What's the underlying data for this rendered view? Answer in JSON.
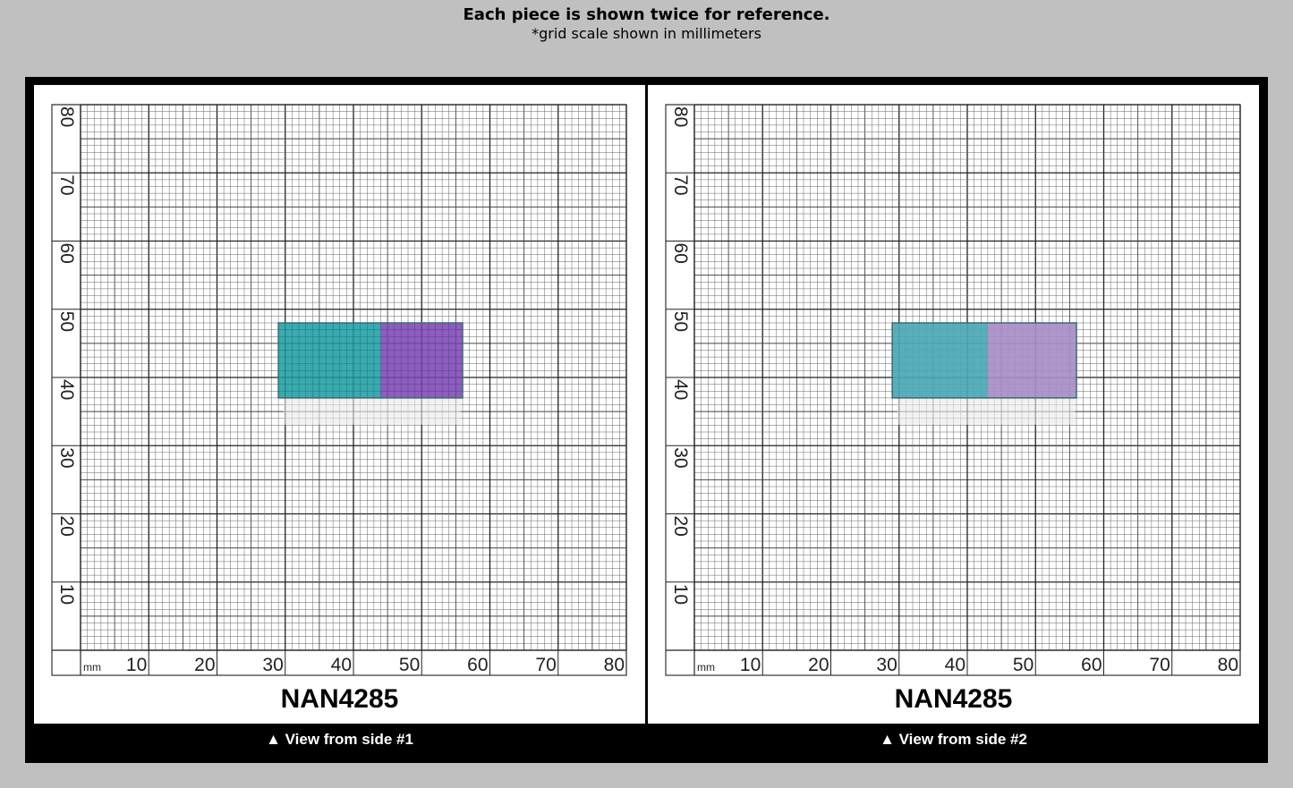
{
  "header": {
    "title": "Each piece is shown twice for reference.",
    "subtitle": "*grid scale shown in millimeters"
  },
  "panels": [
    {
      "code": "NAN4285",
      "caption": "▲ View from side #1",
      "piece": {
        "x_mm": [
          29,
          56
        ],
        "y_mm": [
          37,
          48
        ],
        "colors": [
          "#1f9ea4",
          "#7f45b6"
        ],
        "split_mm": 44
      }
    },
    {
      "code": "NAN4285",
      "caption": "▲ View from side #2",
      "piece": {
        "x_mm": [
          29,
          56
        ],
        "y_mm": [
          37,
          48
        ],
        "colors": [
          "#4ba8b3",
          "#a78cc6"
        ],
        "split_mm": 43
      }
    }
  ],
  "grid": {
    "unit": "mm",
    "x_ticks": [
      "10",
      "20",
      "30",
      "40",
      "50",
      "60",
      "70",
      "80"
    ],
    "y_ticks": [
      "10",
      "20",
      "30",
      "40",
      "50",
      "60",
      "70",
      "80"
    ]
  }
}
